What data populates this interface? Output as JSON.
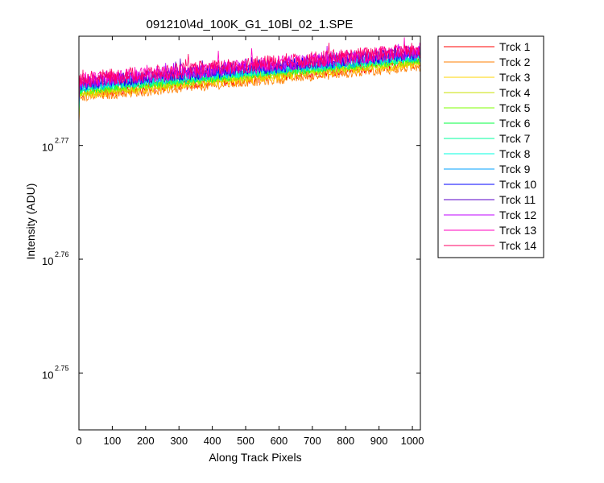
{
  "chart_data": {
    "type": "line",
    "title": "091210\\4d_100K_G1_10Bl_02_1.SPE",
    "xlabel": "Along Track Pixels",
    "ylabel": "Intensity (ADU)",
    "xlim": [
      0,
      1024
    ],
    "ylim_log10": [
      2.745,
      2.7796
    ],
    "yscale": "log",
    "x_ticks": [
      0,
      100,
      200,
      300,
      400,
      500,
      600,
      700,
      800,
      900,
      1000
    ],
    "y_ticks": [
      {
        "base": "10",
        "exponent": "2.75",
        "log10": 2.75
      },
      {
        "base": "10",
        "exponent": "2.76",
        "log10": 2.76
      },
      {
        "base": "10",
        "exponent": "2.77",
        "log10": 2.77
      }
    ],
    "grid": false,
    "legend_position": "outside-right",
    "series": [
      {
        "name": "Trck 1",
        "color": "#ff0000",
        "start_log10": 2.7745,
        "end_log10": 2.7773,
        "noise": 0.0005
      },
      {
        "name": "Trck 2",
        "color": "#ff7f00",
        "start_log10": 2.7742,
        "end_log10": 2.7769,
        "noise": 0.0004
      },
      {
        "name": "Trck 3",
        "color": "#ffd400",
        "start_log10": 2.7744,
        "end_log10": 2.7772,
        "noise": 0.0004
      },
      {
        "name": "Trck 4",
        "color": "#c8e000",
        "start_log10": 2.7746,
        "end_log10": 2.7774,
        "noise": 0.0004
      },
      {
        "name": "Trck 5",
        "color": "#7fff00",
        "start_log10": 2.7748,
        "end_log10": 2.7775,
        "noise": 0.0004
      },
      {
        "name": "Trck 6",
        "color": "#00ff3f",
        "start_log10": 2.7749,
        "end_log10": 2.7776,
        "noise": 0.0004
      },
      {
        "name": "Trck 7",
        "color": "#00ff9f",
        "start_log10": 2.775,
        "end_log10": 2.7777,
        "noise": 0.0004
      },
      {
        "name": "Trck 8",
        "color": "#00ffdf",
        "start_log10": 2.7751,
        "end_log10": 2.7778,
        "noise": 0.0004
      },
      {
        "name": "Trck 9",
        "color": "#00a0ff",
        "start_log10": 2.7752,
        "end_log10": 2.7779,
        "noise": 0.0005
      },
      {
        "name": "Trck 10",
        "color": "#0000ff",
        "start_log10": 2.7754,
        "end_log10": 2.7781,
        "noise": 0.0006
      },
      {
        "name": "Trck 11",
        "color": "#5a00c8",
        "start_log10": 2.7755,
        "end_log10": 2.7782,
        "noise": 0.0006
      },
      {
        "name": "Trck 12",
        "color": "#bf00ff",
        "start_log10": 2.7756,
        "end_log10": 2.7782,
        "noise": 0.0006
      },
      {
        "name": "Trck 13",
        "color": "#ff00bf",
        "start_log10": 2.7757,
        "end_log10": 2.7783,
        "noise": 0.0007
      },
      {
        "name": "Trck 14",
        "color": "#ff0066",
        "start_log10": 2.7758,
        "end_log10": 2.7784,
        "noise": 0.0007
      }
    ]
  }
}
